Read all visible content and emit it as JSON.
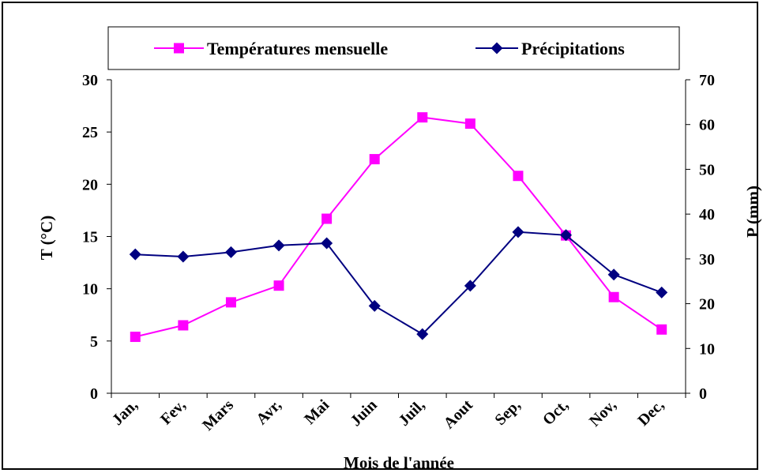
{
  "chart_data": {
    "type": "line",
    "xlabel": "Mois de l'année",
    "categories": [
      "Jan,",
      "Fev,",
      "Mars",
      "Avr,",
      "Mai",
      "Juin",
      "Juil,",
      "Aout",
      "Sep,",
      "Oct,",
      "Nov,",
      "Dec,"
    ],
    "y_left": {
      "label": "T (°C)",
      "lim": [
        0,
        30
      ],
      "ticks": [
        "0",
        "5",
        "10",
        "15",
        "20",
        "25",
        "30"
      ]
    },
    "y_right": {
      "label": "P (mm)",
      "lim": [
        0,
        70
      ],
      "ticks": [
        "0",
        "10",
        "20",
        "30",
        "40",
        "50",
        "60",
        "70"
      ]
    },
    "legend_position": "top",
    "grid": false,
    "series": [
      {
        "name": "Températures mensuelle",
        "axis": "left",
        "color": "#ff00ff",
        "marker": "square",
        "values": [
          5.4,
          6.5,
          8.7,
          10.3,
          16.7,
          22.4,
          26.4,
          25.8,
          20.8,
          15.1,
          9.2,
          6.1
        ]
      },
      {
        "name": "Précipitations",
        "axis": "right",
        "color": "#000080",
        "marker": "diamond",
        "values": [
          31,
          30.5,
          31.5,
          33,
          33.5,
          19.5,
          13.2,
          24,
          36,
          35.3,
          26.5,
          22.5
        ]
      }
    ]
  }
}
